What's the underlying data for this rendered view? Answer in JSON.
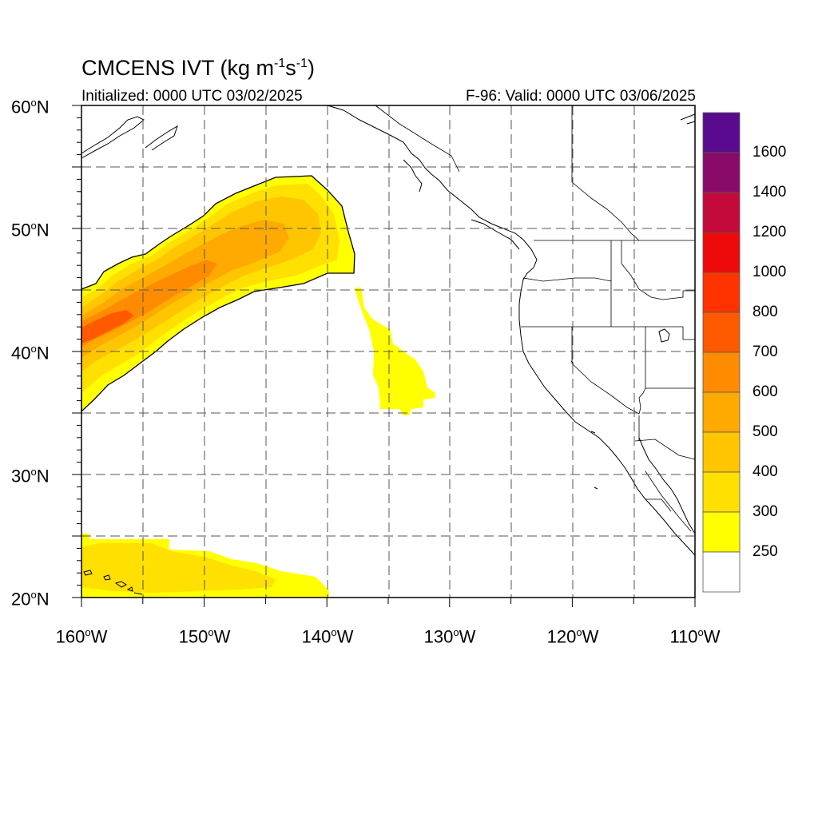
{
  "title": {
    "main": "CMCENS IVT (kg m",
    "exp1": "-1",
    "mid": "s",
    "exp2": "-1",
    "close": ")"
  },
  "initialized": "Initialized: 0000 UTC 03/02/2025",
  "valid": "F-96: Valid: 0000 UTC 03/06/2025",
  "lat_labels": [
    {
      "num": "60",
      "hem": "N"
    },
    {
      "num": "50",
      "hem": "N"
    },
    {
      "num": "40",
      "hem": "N"
    },
    {
      "num": "30",
      "hem": "N"
    },
    {
      "num": "20",
      "hem": "N"
    }
  ],
  "lon_labels": [
    {
      "num": "160",
      "hem": "W"
    },
    {
      "num": "150",
      "hem": "W"
    },
    {
      "num": "140",
      "hem": "W"
    },
    {
      "num": "130",
      "hem": "W"
    },
    {
      "num": "120",
      "hem": "W"
    },
    {
      "num": "110",
      "hem": "W"
    }
  ],
  "colorbar": {
    "labels": [
      "1600",
      "1400",
      "1200",
      "1000",
      "800",
      "700",
      "600",
      "500",
      "400",
      "300",
      "250"
    ],
    "colors": [
      "#5a0a8e",
      "#8a0a6a",
      "#c40a3a",
      "#ee0a0a",
      "#ff3300",
      "#ff5a00",
      "#ff8c00",
      "#ffaa00",
      "#ffc600",
      "#ffe000",
      "#ffff00",
      "#ffffff"
    ]
  },
  "palette": {
    "c250": "#ffff00",
    "c300": "#ffe000",
    "c400": "#ffc600",
    "c500": "#ffaa00",
    "c600": "#ff8c00",
    "c700": "#ff5a00"
  }
}
